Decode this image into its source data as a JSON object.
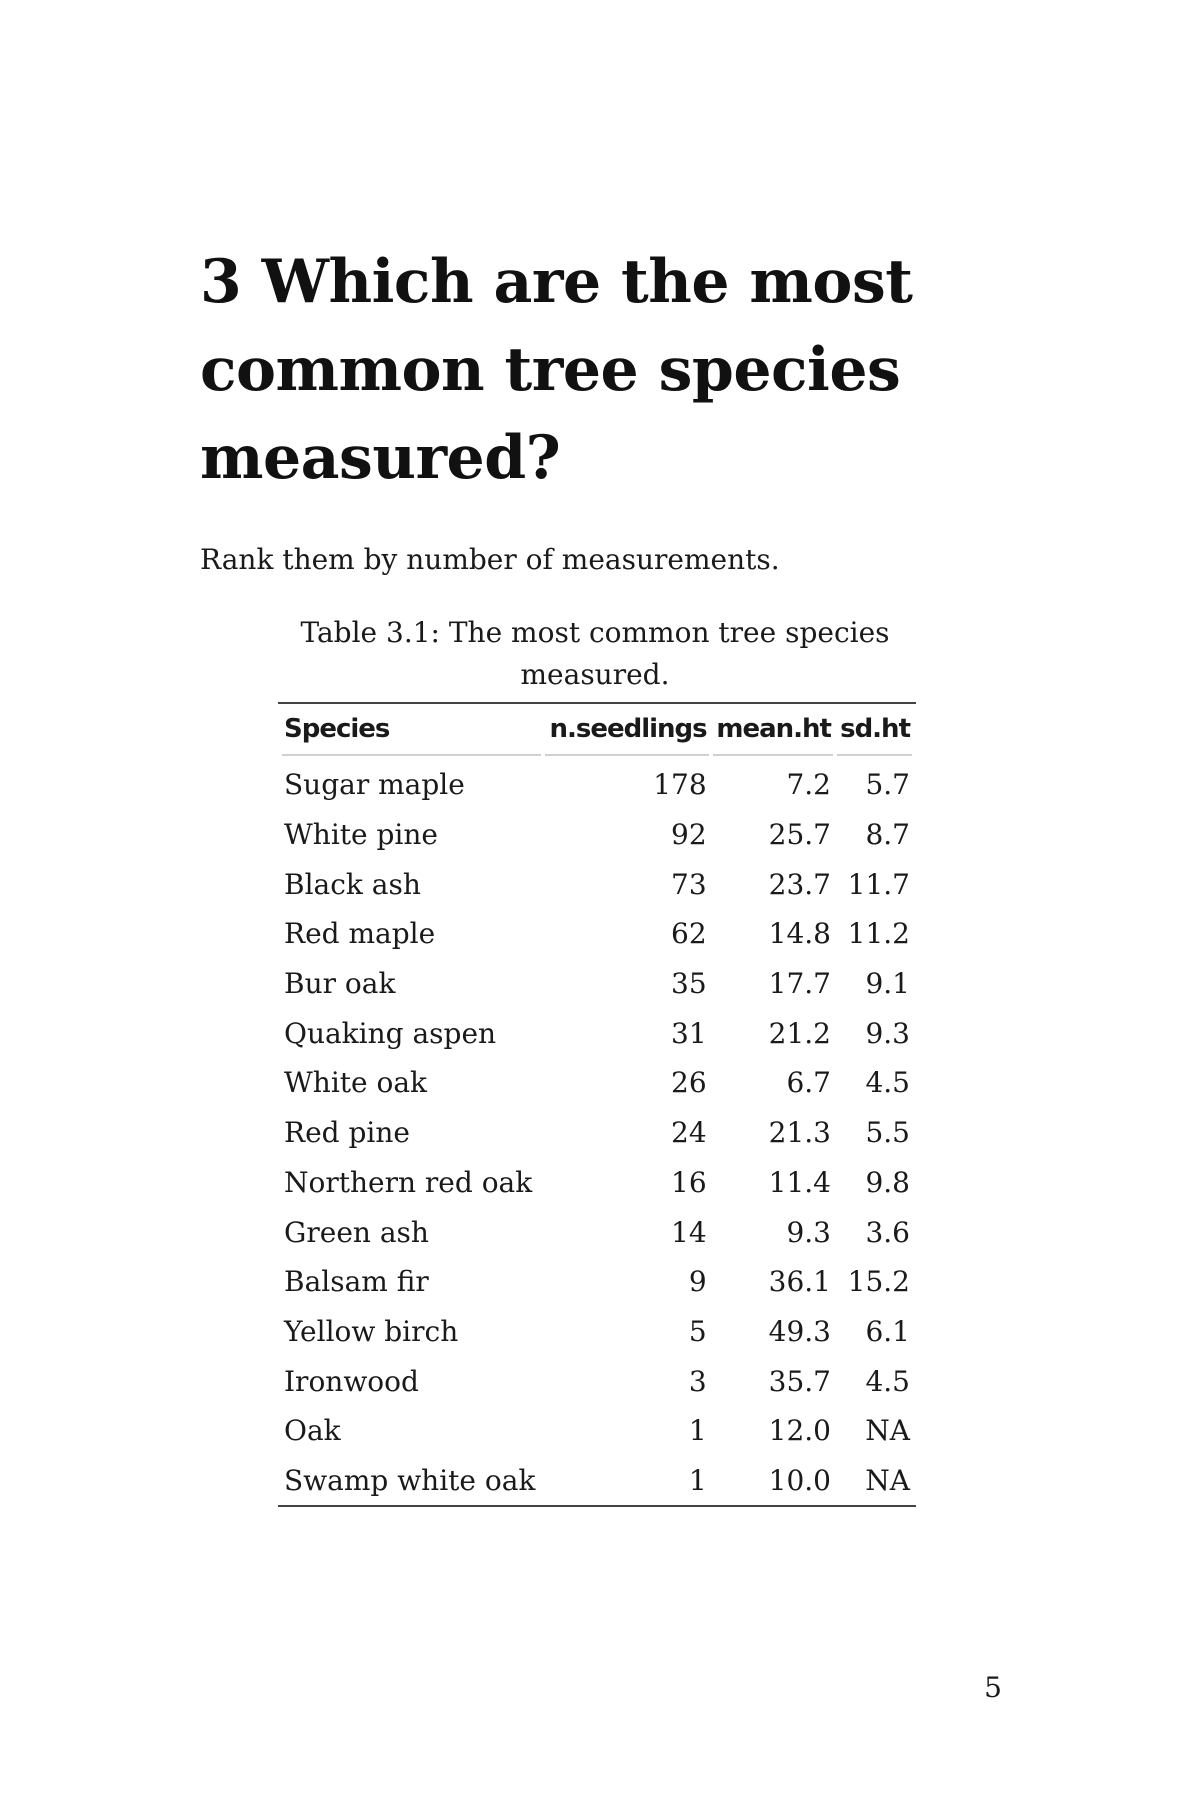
{
  "chapter": {
    "title": "3 Which are the most common tree species measured?"
  },
  "intro": {
    "text": "Rank them by number of measurements."
  },
  "table": {
    "caption": "Table 3.1: The most common tree species measured.",
    "columns": [
      "Species",
      "n.seedlings",
      "mean.ht",
      "sd.ht"
    ],
    "rows": [
      [
        "Sugar maple",
        "178",
        "7.2",
        "5.7"
      ],
      [
        "White pine",
        "92",
        "25.7",
        "8.7"
      ],
      [
        "Black ash",
        "73",
        "23.7",
        "11.7"
      ],
      [
        "Red maple",
        "62",
        "14.8",
        "11.2"
      ],
      [
        "Bur oak",
        "35",
        "17.7",
        "9.1"
      ],
      [
        "Quaking aspen",
        "31",
        "21.2",
        "9.3"
      ],
      [
        "White oak",
        "26",
        "6.7",
        "4.5"
      ],
      [
        "Red pine",
        "24",
        "21.3",
        "5.5"
      ],
      [
        "Northern red oak",
        "16",
        "11.4",
        "9.8"
      ],
      [
        "Green ash",
        "14",
        "9.3",
        "3.6"
      ],
      [
        "Balsam fir",
        "9",
        "36.1",
        "15.2"
      ],
      [
        "Yellow birch",
        "5",
        "49.3",
        "6.1"
      ],
      [
        "Ironwood",
        "3",
        "35.7",
        "4.5"
      ],
      [
        "Oak",
        "1",
        "12.0",
        "NA"
      ],
      [
        "Swamp white oak",
        "1",
        "10.0",
        "NA"
      ]
    ]
  },
  "footer": {
    "page_number": "5"
  }
}
